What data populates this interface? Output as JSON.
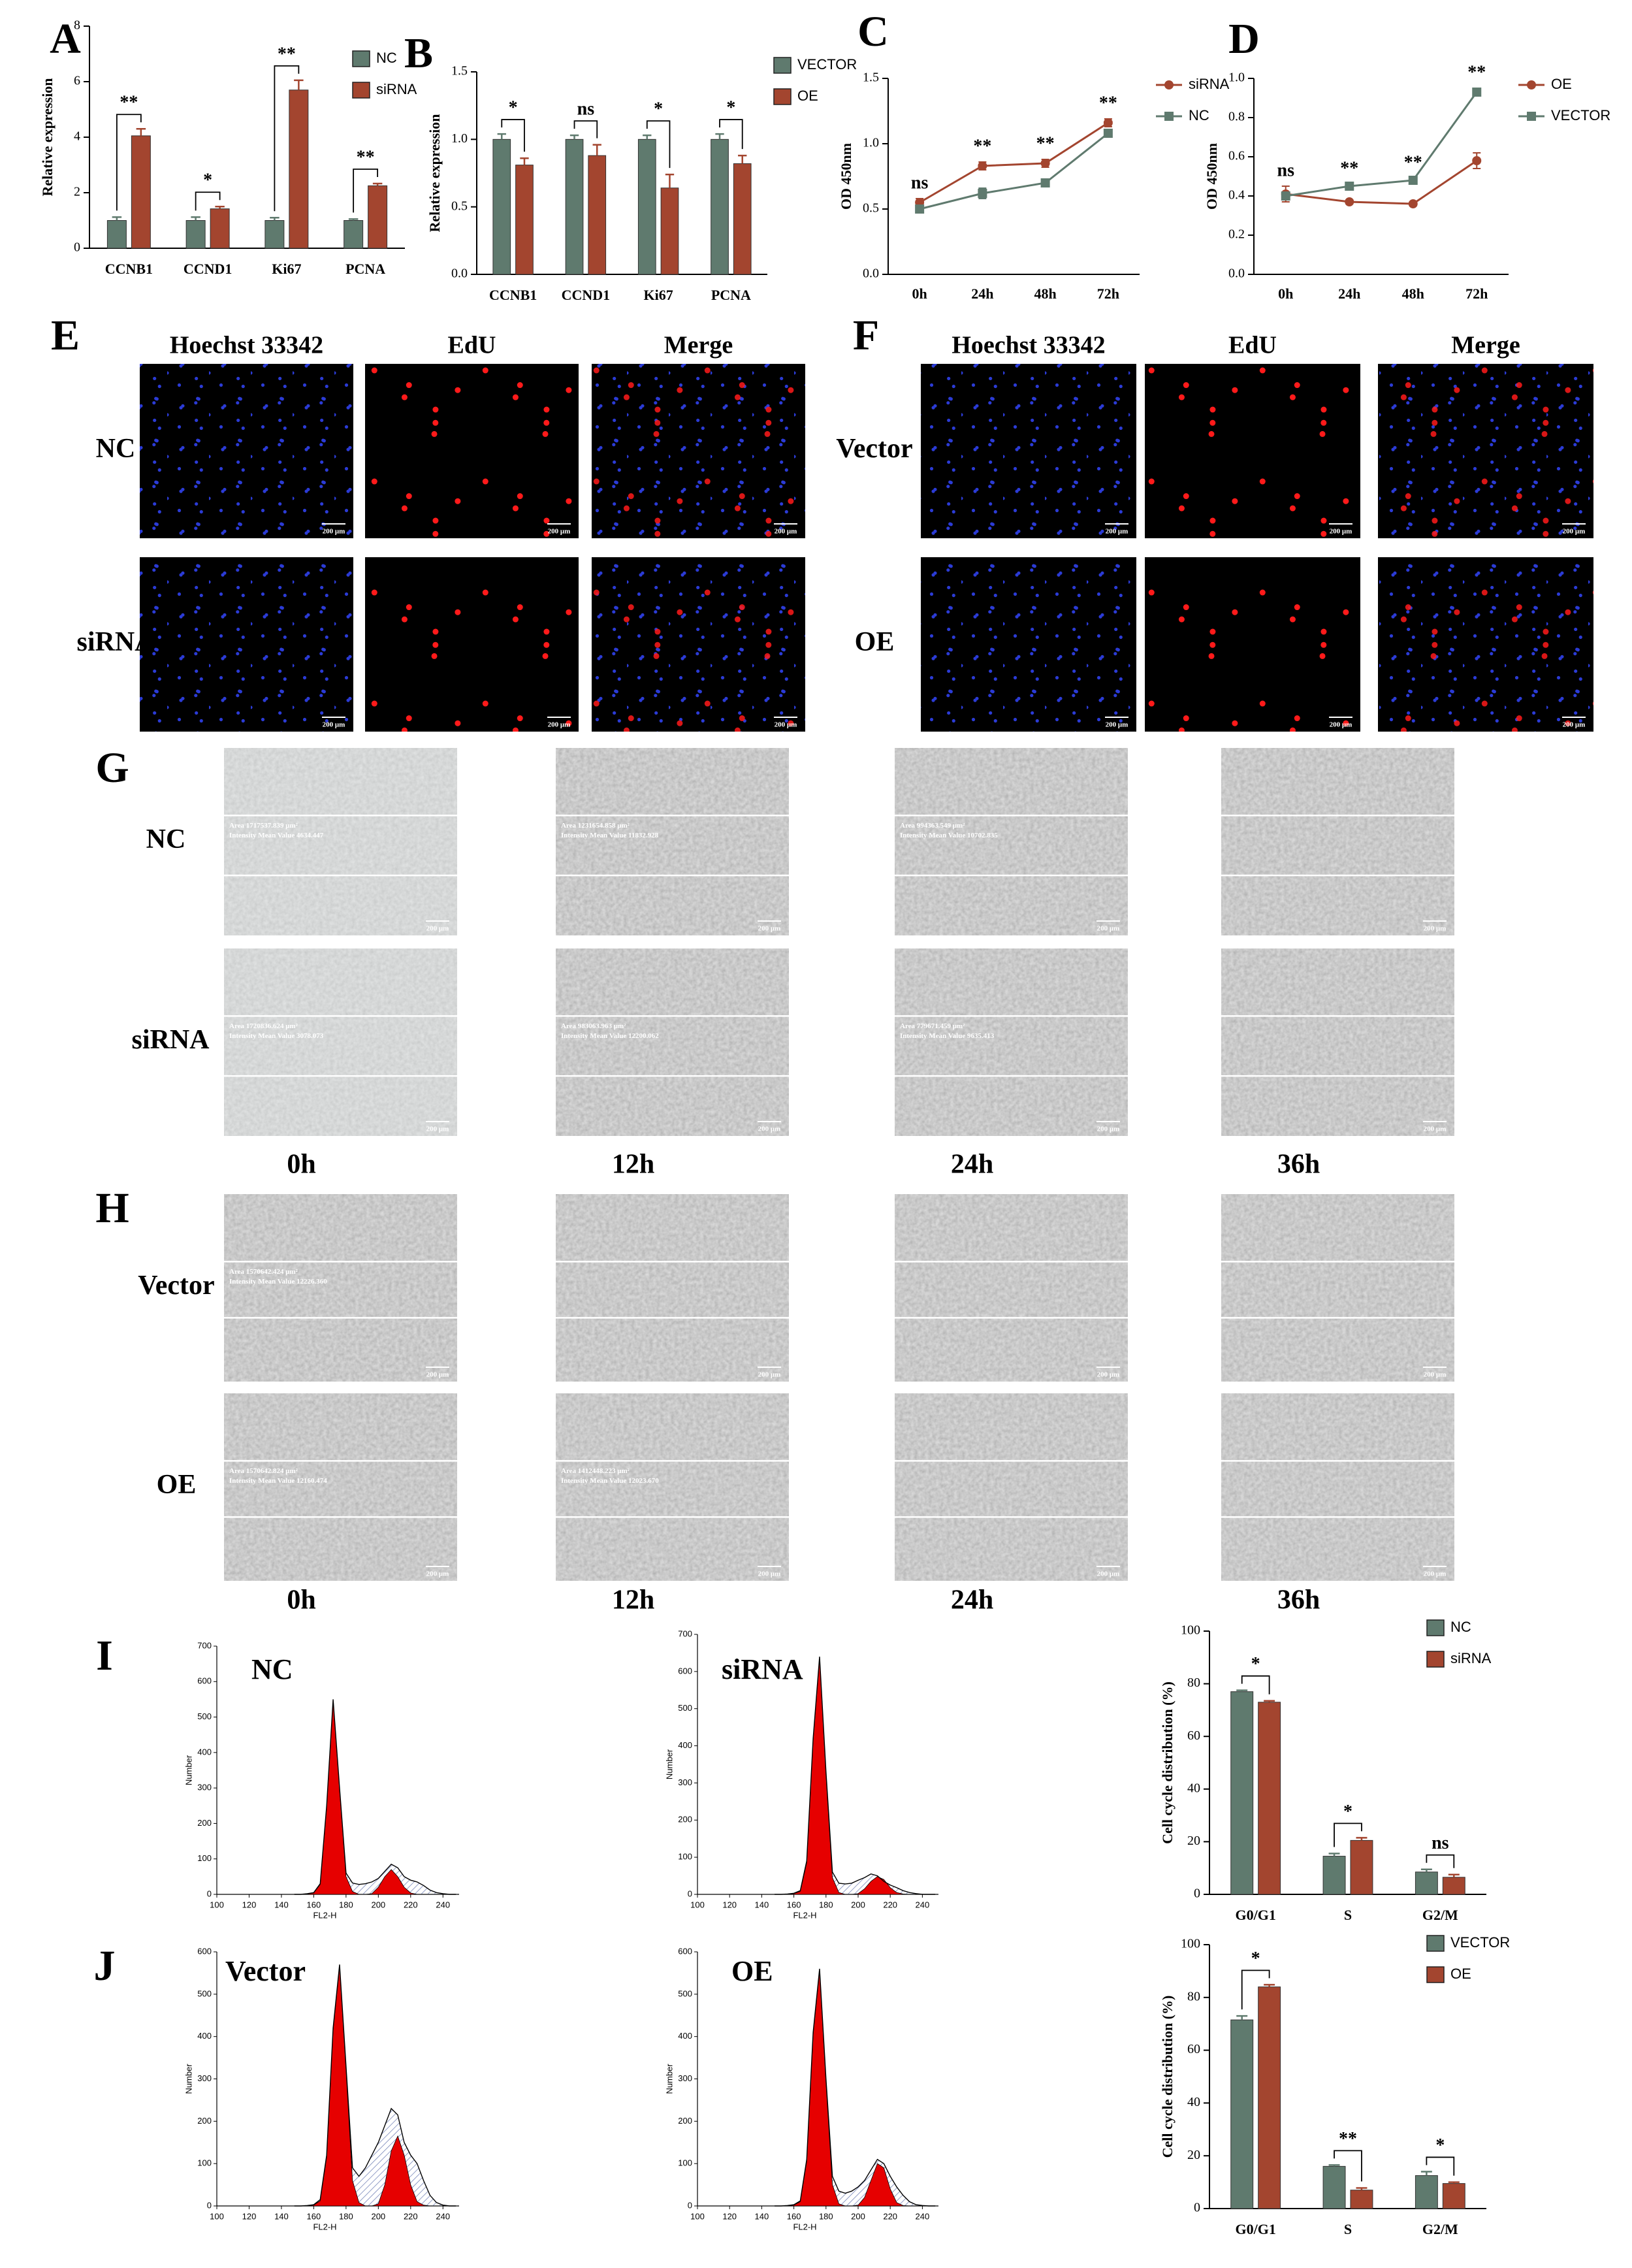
{
  "chart_data": [
    {
      "type": "bar",
      "panel": "A",
      "categories": [
        "CCNB1",
        "CCND1",
        "Ki67",
        "PCNA"
      ],
      "series": [
        {
          "name": "NC",
          "color": "#5f7a6e",
          "values": [
            1,
            1,
            1,
            1
          ],
          "errors": [
            0.12,
            0.12,
            0.1,
            0.05
          ]
        },
        {
          "name": "siRNA",
          "color": "#a3452f",
          "values": [
            4.05,
            1.42,
            5.7,
            2.25
          ],
          "errors": [
            0.25,
            0.08,
            0.35,
            0.08
          ]
        }
      ],
      "ylim": [
        0,
        8
      ],
      "yticks": [
        0,
        2,
        4,
        6,
        8
      ],
      "ylabel": "Relative expression",
      "significance": [
        "**",
        "*",
        "**",
        "**"
      ]
    },
    {
      "type": "bar",
      "panel": "B",
      "categories": [
        "CCNB1",
        "CCND1",
        "Ki67",
        "PCNA"
      ],
      "series": [
        {
          "name": "VECTOR",
          "color": "#5f7a6e",
          "values": [
            1,
            1,
            1,
            1
          ],
          "errors": [
            0.04,
            0.03,
            0.03,
            0.04
          ]
        },
        {
          "name": "OE",
          "color": "#a3452f",
          "values": [
            0.81,
            0.88,
            0.64,
            0.82
          ],
          "errors": [
            0.05,
            0.08,
            0.1,
            0.06
          ]
        }
      ],
      "ylim": [
        0,
        1.5
      ],
      "yticks": [
        {
          "value": 0,
          "label": "0.0"
        },
        0.5,
        {
          "value": 1,
          "label": "1.0"
        },
        1.5
      ],
      "ylabel": "Relative expression",
      "significance": [
        "*",
        "ns",
        "*",
        "*"
      ]
    },
    {
      "type": "line",
      "panel": "C",
      "categories": [
        "0h",
        "24h",
        "48h",
        "72h"
      ],
      "series": [
        {
          "name": "siRNA",
          "color": "#a3452f",
          "marker": "circle",
          "values": [
            0.55,
            0.83,
            0.85,
            1.16
          ],
          "errors": [
            0.03,
            0.03,
            0.03,
            0.03
          ]
        },
        {
          "name": "NC",
          "color": "#5f7a6e",
          "marker": "square",
          "values": [
            0.5,
            0.62,
            0.7,
            1.08
          ],
          "errors": [
            0.03,
            0.04,
            0.02,
            0.03
          ]
        }
      ],
      "ylim": [
        0,
        1.5
      ],
      "yticks": [
        {
          "value": 0,
          "label": "0.0"
        },
        0.5,
        {
          "value": 1,
          "label": "1.0"
        },
        1.5
      ],
      "ylabel": "OD 450nm",
      "significance": [
        "ns",
        "**",
        "**",
        "**"
      ]
    },
    {
      "type": "line",
      "panel": "D",
      "categories": [
        "0h",
        "24h",
        "48h",
        "72h"
      ],
      "series": [
        {
          "name": "OE",
          "color": "#a3452f",
          "marker": "circle",
          "values": [
            0.41,
            0.37,
            0.36,
            0.58
          ],
          "errors": [
            0.04,
            0.01,
            0.01,
            0.04
          ]
        },
        {
          "name": "VECTOR",
          "color": "#5f7a6e",
          "marker": "square",
          "values": [
            0.4,
            0.45,
            0.48,
            0.93
          ],
          "errors": [
            0.02,
            0.01,
            0.01,
            0.02
          ]
        }
      ],
      "ylim": [
        0,
        1
      ],
      "yticks": [
        {
          "value": 0,
          "label": "0.0"
        },
        0.2,
        0.4,
        0.6,
        0.8,
        {
          "value": 1,
          "label": "1.0"
        }
      ],
      "ylabel": "OD 450nm",
      "significance": [
        "ns",
        "**",
        "**",
        "**"
      ]
    },
    {
      "type": "flow",
      "panel": "I",
      "title": "NC",
      "x": [
        148,
        152,
        156,
        160,
        164,
        168,
        172,
        176,
        180,
        184,
        188,
        192,
        196,
        200,
        204,
        208,
        212,
        216,
        220,
        224,
        228,
        232,
        236,
        240,
        244,
        248
      ],
      "series": [
        {
          "color": "#000000",
          "values": [
            0,
            0,
            2,
            5,
            30,
            250,
            550,
            300,
            60,
            32,
            28,
            30,
            35,
            45,
            65,
            85,
            75,
            50,
            40,
            35,
            25,
            12,
            5,
            2,
            0,
            0
          ]
        },
        {
          "color": "#e60000",
          "values": [
            0,
            0,
            1,
            4,
            28,
            245,
            545,
            295,
            50,
            8,
            0,
            0,
            2,
            20,
            50,
            70,
            50,
            20,
            4,
            0,
            0,
            0,
            0,
            0,
            0,
            0
          ]
        }
      ],
      "xlim": [
        100,
        250
      ],
      "xticks": [
        100,
        120,
        140,
        160,
        180,
        200,
        220,
        240
      ],
      "ylim": [
        0,
        700
      ],
      "yticks": [
        0,
        100,
        200,
        300,
        400,
        500,
        600,
        700
      ],
      "xlabel": "FL2-H",
      "ylabel": "Number"
    },
    {
      "type": "flow",
      "title": "siRNA",
      "x": [
        148,
        152,
        156,
        160,
        164,
        168,
        172,
        176,
        180,
        184,
        188,
        192,
        196,
        200,
        204,
        208,
        212,
        216,
        220,
        224,
        228,
        232,
        236,
        240,
        244,
        248
      ],
      "series": [
        {
          "color": "#000000",
          "values": [
            0,
            0,
            1,
            3,
            10,
            90,
            420,
            640,
            330,
            60,
            30,
            28,
            30,
            38,
            45,
            55,
            50,
            35,
            25,
            18,
            10,
            5,
            2,
            0,
            0,
            0
          ]
        },
        {
          "color": "#e60000",
          "values": [
            0,
            0,
            0,
            2,
            8,
            85,
            415,
            635,
            320,
            45,
            5,
            0,
            0,
            2,
            15,
            35,
            48,
            40,
            18,
            5,
            1,
            0,
            0,
            0,
            0,
            0
          ]
        }
      ],
      "xlim": [
        100,
        250
      ],
      "xticks": [
        100,
        120,
        140,
        160,
        180,
        200,
        220,
        240
      ],
      "ylim": [
        0,
        700
      ],
      "yticks": [
        0,
        100,
        200,
        300,
        400,
        500,
        600,
        700
      ],
      "xlabel": "FL2-H",
      "ylabel": "Number"
    },
    {
      "type": "bar",
      "categories": [
        "G0/G1",
        "S",
        "G2/M"
      ],
      "series": [
        {
          "name": "NC",
          "color": "#5f7a6e",
          "values": [
            77,
            14.5,
            8.5
          ],
          "errors": [
            0.5,
            1,
            1
          ]
        },
        {
          "name": "siRNA",
          "color": "#a3452f",
          "values": [
            73,
            20.5,
            6.5
          ],
          "errors": [
            0.5,
            1,
            1
          ]
        }
      ],
      "ylim": [
        0,
        100
      ],
      "yticks": [
        0,
        20,
        40,
        60,
        80,
        100
      ],
      "ylabel": "Cell cycle distribution (%)",
      "significance": [
        "*",
        "*",
        "ns"
      ]
    },
    {
      "type": "flow",
      "panel": "J",
      "title": "Vector",
      "x": [
        148,
        152,
        156,
        160,
        164,
        168,
        172,
        176,
        180,
        184,
        188,
        192,
        196,
        200,
        204,
        208,
        212,
        216,
        220,
        224,
        228,
        232,
        236,
        240,
        244,
        248
      ],
      "series": [
        {
          "color": "#000000",
          "values": [
            0,
            0,
            1,
            3,
            15,
            120,
            420,
            570,
            330,
            90,
            70,
            90,
            120,
            150,
            190,
            230,
            215,
            150,
            120,
            100,
            60,
            25,
            8,
            2,
            0,
            0
          ]
        },
        {
          "color": "#e60000",
          "values": [
            0,
            0,
            0,
            2,
            12,
            115,
            415,
            565,
            320,
            60,
            8,
            0,
            0,
            5,
            50,
            130,
            165,
            120,
            50,
            10,
            2,
            0,
            0,
            0,
            0,
            0
          ]
        }
      ],
      "xlim": [
        100,
        250
      ],
      "xticks": [
        100,
        120,
        140,
        160,
        180,
        200,
        220,
        240
      ],
      "ylim": [
        0,
        600
      ],
      "yticks": [
        0,
        100,
        200,
        300,
        400,
        500,
        600
      ],
      "xlabel": "FL2-H",
      "ylabel": "Number"
    },
    {
      "type": "flow",
      "title": "OE",
      "x": [
        148,
        152,
        156,
        160,
        164,
        168,
        172,
        176,
        180,
        184,
        188,
        192,
        196,
        200,
        204,
        208,
        212,
        216,
        220,
        224,
        228,
        232,
        236,
        240,
        244,
        248
      ],
      "series": [
        {
          "color": "#000000",
          "values": [
            0,
            0,
            1,
            3,
            12,
            110,
            410,
            560,
            300,
            70,
            35,
            30,
            35,
            45,
            60,
            85,
            110,
            100,
            70,
            45,
            25,
            10,
            3,
            1,
            0,
            0
          ]
        },
        {
          "color": "#e60000",
          "values": [
            0,
            0,
            0,
            2,
            10,
            105,
            405,
            555,
            290,
            50,
            5,
            0,
            0,
            2,
            20,
            60,
            100,
            90,
            40,
            8,
            1,
            0,
            0,
            0,
            0,
            0
          ]
        }
      ],
      "xlim": [
        100,
        250
      ],
      "xticks": [
        100,
        120,
        140,
        160,
        180,
        200,
        220,
        240
      ],
      "ylim": [
        0,
        600
      ],
      "yticks": [
        0,
        100,
        200,
        300,
        400,
        500,
        600
      ],
      "xlabel": "FL2-H",
      "ylabel": "Number"
    },
    {
      "type": "bar",
      "categories": [
        "G0/G1",
        "S",
        "G2/M"
      ],
      "series": [
        {
          "name": "VECTOR",
          "color": "#5f7a6e",
          "values": [
            71.5,
            16,
            12.5
          ],
          "errors": [
            1.5,
            0.5,
            1.5
          ]
        },
        {
          "name": "OE",
          "color": "#a3452f",
          "values": [
            84,
            7,
            9.5
          ],
          "errors": [
            0.8,
            0.8,
            0.5
          ]
        }
      ],
      "ylim": [
        0,
        100
      ],
      "yticks": [
        0,
        20,
        40,
        60,
        80,
        100
      ],
      "ylabel": "Cell cycle distribution (%)",
      "significance": [
        "*",
        "**",
        "*"
      ]
    }
  ],
  "image_panels": [
    {
      "panel": "E",
      "columns": [
        "Hoechst 33342",
        "EdU",
        "Merge"
      ],
      "rows": [
        "NC",
        "siRNA"
      ],
      "scale_bar": "200 μm"
    },
    {
      "panel": "F",
      "columns": [
        "Hoechst 33342",
        "EdU",
        "Merge"
      ],
      "rows": [
        "Vector",
        "OE"
      ],
      "scale_bar": "200 μm"
    }
  ],
  "scratch_panels": [
    {
      "panel": "G",
      "rows": [
        "NC",
        "siRNA"
      ],
      "columns": [
        "0h",
        "12h",
        "24h",
        "36h"
      ],
      "scale_bar": "200 μm",
      "annotations": [
        [
          [
            "Area 1717537.839 μm²",
            "Intensity Mean Value 4634.447"
          ],
          [
            "Area 1231654.858 μm²",
            "Intensity Mean Value 11832.928"
          ],
          [
            "Area 994363.549 μm²",
            "Intensity Mean Value 10702.835"
          ],
          null
        ],
        [
          [
            "Area 1720836.624 μm²",
            "Intensity Mean Value 3078.073"
          ],
          [
            "Area 983063.963 μm²",
            "Intensity Mean Value 12200.062"
          ],
          [
            "Area 779671.459 μm²",
            "Intensity Mean Value 9635.413"
          ],
          null
        ]
      ]
    },
    {
      "panel": "H",
      "rows": [
        "Vector",
        "OE"
      ],
      "columns": [
        "0h",
        "12h",
        "24h",
        "36h"
      ],
      "scale_bar": "200 μm",
      "annotations": [
        [
          [
            "Area 1570642.424 μm²",
            "Intensity Mean Value 12226.360"
          ],
          null,
          null,
          null
        ],
        [
          [
            "Area 1570642.824 μm²",
            "Intensity Mean Value 12160.474"
          ],
          [
            "Area 1412448.223 μm²",
            "Intensity Mean Value 12023.670"
          ],
          null,
          null
        ]
      ]
    }
  ]
}
